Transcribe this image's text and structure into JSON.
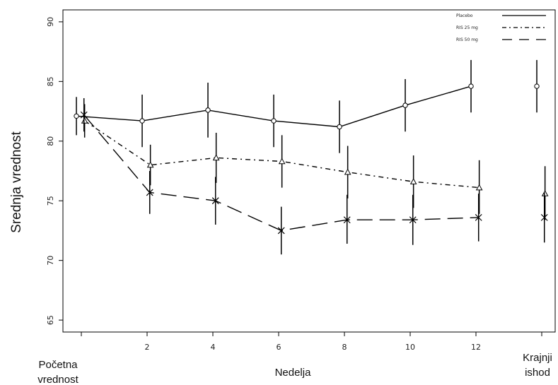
{
  "chart_data": {
    "type": "line",
    "ylabel": "Srednja vrednost",
    "xlabel": "Nedelja",
    "ylim": [
      64,
      91
    ],
    "yticks": [
      65,
      70,
      75,
      80,
      85,
      90
    ],
    "x_ticks": [
      {
        "x": 0,
        "label": ""
      },
      {
        "x": 2,
        "label": "2"
      },
      {
        "x": 4,
        "label": "4"
      },
      {
        "x": 6,
        "label": "6"
      },
      {
        "x": 8,
        "label": "8"
      },
      {
        "x": 10,
        "label": "10"
      },
      {
        "x": 12,
        "label": "12"
      },
      {
        "x": 14,
        "label": ""
      }
    ],
    "category_labels": {
      "baseline": [
        "Početna",
        "vrednost"
      ],
      "endpoint": [
        "Krajnji",
        "ishod"
      ]
    },
    "legend_position": "top-right",
    "series": [
      {
        "name": "Placebo",
        "color": "#000000",
        "line_style": "solid",
        "marker": "circle",
        "points": [
          {
            "x": 0,
            "y": 82.1,
            "lo": 80.5,
            "hi": 83.7
          },
          {
            "x": 2,
            "y": 81.7,
            "lo": 79.5,
            "hi": 83.9
          },
          {
            "x": 4,
            "y": 82.6,
            "lo": 80.3,
            "hi": 84.9
          },
          {
            "x": 6,
            "y": 81.7,
            "lo": 79.5,
            "hi": 83.9
          },
          {
            "x": 8,
            "y": 81.2,
            "lo": 79.0,
            "hi": 83.4
          },
          {
            "x": 10,
            "y": 83.0,
            "lo": 80.8,
            "hi": 85.2
          },
          {
            "x": 12,
            "y": 84.6,
            "lo": 82.4,
            "hi": 86.8
          },
          {
            "x": 14,
            "y": 84.6,
            "lo": 82.4,
            "hi": 86.8
          }
        ]
      },
      {
        "name": "RIS 25 mg",
        "color": "#000000",
        "line_style": "dash-dot",
        "marker": "triangle",
        "points": [
          {
            "x": 0,
            "y": 81.7,
            "lo": 80.3,
            "hi": 83.1
          },
          {
            "x": 2,
            "y": 78.0,
            "lo": 76.3,
            "hi": 79.7
          },
          {
            "x": 4,
            "y": 78.6,
            "lo": 76.5,
            "hi": 80.7
          },
          {
            "x": 6,
            "y": 78.3,
            "lo": 76.1,
            "hi": 80.5
          },
          {
            "x": 8,
            "y": 77.4,
            "lo": 75.2,
            "hi": 79.6
          },
          {
            "x": 10,
            "y": 76.6,
            "lo": 74.4,
            "hi": 78.8
          },
          {
            "x": 12,
            "y": 76.1,
            "lo": 73.9,
            "hi": 78.4
          },
          {
            "x": 14,
            "y": 75.6,
            "lo": 73.4,
            "hi": 77.9
          }
        ]
      },
      {
        "name": "RIS 50 mg",
        "color": "#000000",
        "line_style": "dashed",
        "marker": "x",
        "points": [
          {
            "x": 0,
            "y": 82.2,
            "lo": 80.8,
            "hi": 83.6
          },
          {
            "x": 2,
            "y": 75.7,
            "lo": 73.9,
            "hi": 77.5
          },
          {
            "x": 4,
            "y": 75.0,
            "lo": 73.0,
            "hi": 77.0
          },
          {
            "x": 6,
            "y": 72.5,
            "lo": 70.5,
            "hi": 74.5
          },
          {
            "x": 8,
            "y": 73.4,
            "lo": 71.4,
            "hi": 75.5
          },
          {
            "x": 10,
            "y": 73.4,
            "lo": 71.3,
            "hi": 75.5
          },
          {
            "x": 12,
            "y": 73.6,
            "lo": 71.6,
            "hi": 75.6
          },
          {
            "x": 14,
            "y": 73.6,
            "lo": 71.5,
            "hi": 75.7
          }
        ]
      }
    ]
  }
}
